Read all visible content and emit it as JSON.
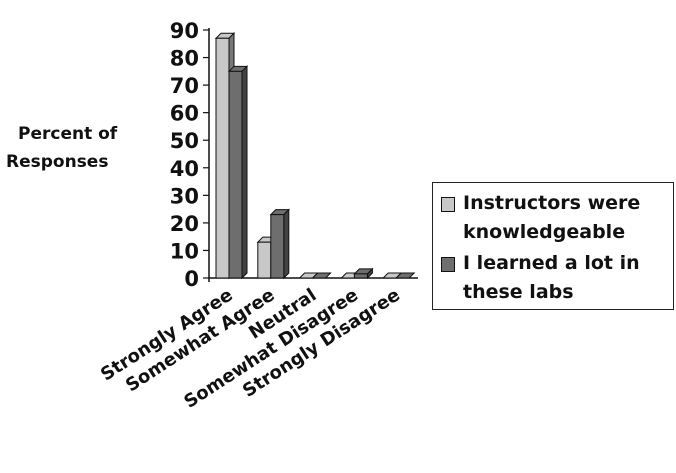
{
  "chart_data": {
    "type": "bar",
    "title": "",
    "ylabel": [
      "Percent of",
      "Responses"
    ],
    "xlabel": "",
    "ylim": [
      0,
      90
    ],
    "yticks": [
      0,
      10,
      20,
      30,
      40,
      50,
      60,
      70,
      80,
      90
    ],
    "categories": [
      "Strongly Agree",
      "Somewhat Agree",
      "Neutral",
      "Somewhat Disagree",
      "Strongly Disagree"
    ],
    "series": [
      {
        "name": "Instructors were knowledgeable",
        "values": [
          87,
          13,
          0,
          0,
          0
        ],
        "color": "#c8c8c8"
      },
      {
        "name": "I learned a lot in these labs",
        "values": [
          75,
          23,
          0,
          1.5,
          0
        ],
        "color": "#6e6e6e"
      }
    ],
    "grid": false,
    "legend_position": "right",
    "style": "3d"
  }
}
